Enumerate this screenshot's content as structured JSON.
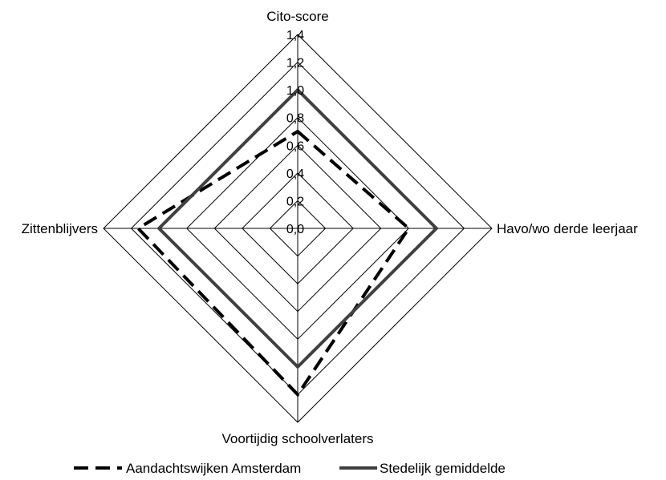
{
  "chart_data": {
    "type": "radar",
    "title": "",
    "axes": [
      "Cito-score",
      "Havo/wo derde leerjaar",
      "Voortijdig schoolverlaters",
      "Zittenblijvers"
    ],
    "ticks": [
      "0,0",
      "0,2",
      "0,4",
      "0,6",
      "0,8",
      "1,0",
      "1,2",
      "1,4"
    ],
    "tick_values": [
      0,
      0.2,
      0.4,
      0.6,
      0.8,
      1.0,
      1.2,
      1.4
    ],
    "range": [
      0,
      1.4
    ],
    "grid": true,
    "legend_position": "bottom",
    "series": [
      {
        "name": "Aandachtswijken Amsterdam",
        "values": [
          0.7,
          0.8,
          1.2,
          1.15
        ],
        "style": "dashed",
        "color": "#000000"
      },
      {
        "name": "Stedelijk gemiddelde",
        "values": [
          1.0,
          1.0,
          1.0,
          1.0
        ],
        "style": "solid",
        "color": "#404040"
      }
    ]
  }
}
